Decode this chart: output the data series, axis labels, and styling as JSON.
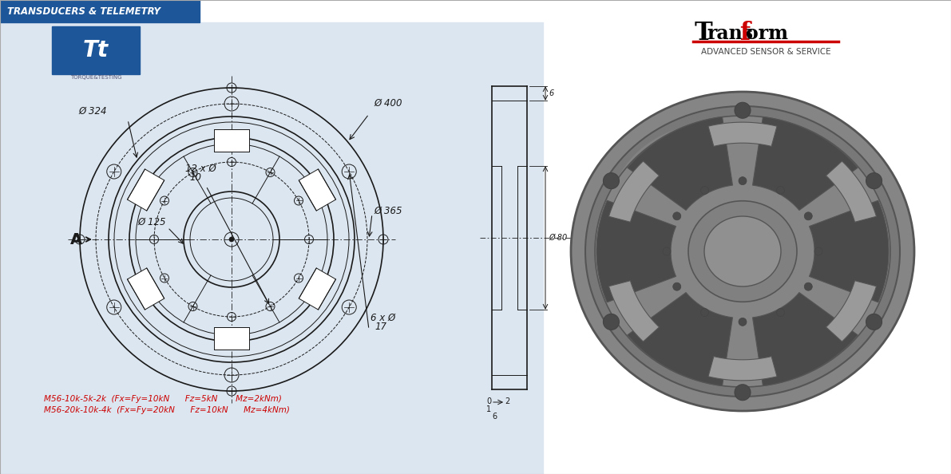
{
  "header_text": "TRANSDUCERS & TELEMETRY",
  "logo_sub": "TORQUE&TESTING",
  "transform_sub": "ADVANCED SENSOR & SERVICE",
  "spec_text_1": "M56-10k-5k-2k  (Fx=Fy=10kN      Fz=5kN       Mz=2kNm)",
  "spec_text_2": "M56-20k-10k-4k  (Fx=Fy=20kN      Fz=10kN      Mz=4kNm)",
  "dim_400": "Ø 400",
  "dim_324": "Ø 324",
  "dim_365": "Ø 365",
  "dim_125": "Ø 125",
  "dim_12xphi": "12 x Ø",
  "dim_10": "10",
  "dim_6xphi": "6 x Ø",
  "dim_17": "17",
  "dim_80": "Ø 80",
  "label_A": "A",
  "header_bg": "#1e5799",
  "left_bg": "#dce6f0",
  "white": "#ffffff",
  "line_col": "#1a1a1a",
  "red": "#cc0000",
  "gray3d_outer": "#888888",
  "gray3d_mid": "#707070",
  "gray3d_dark": "#555555",
  "gray3d_rim": "#999999",
  "gray3d_hub": "#888888"
}
